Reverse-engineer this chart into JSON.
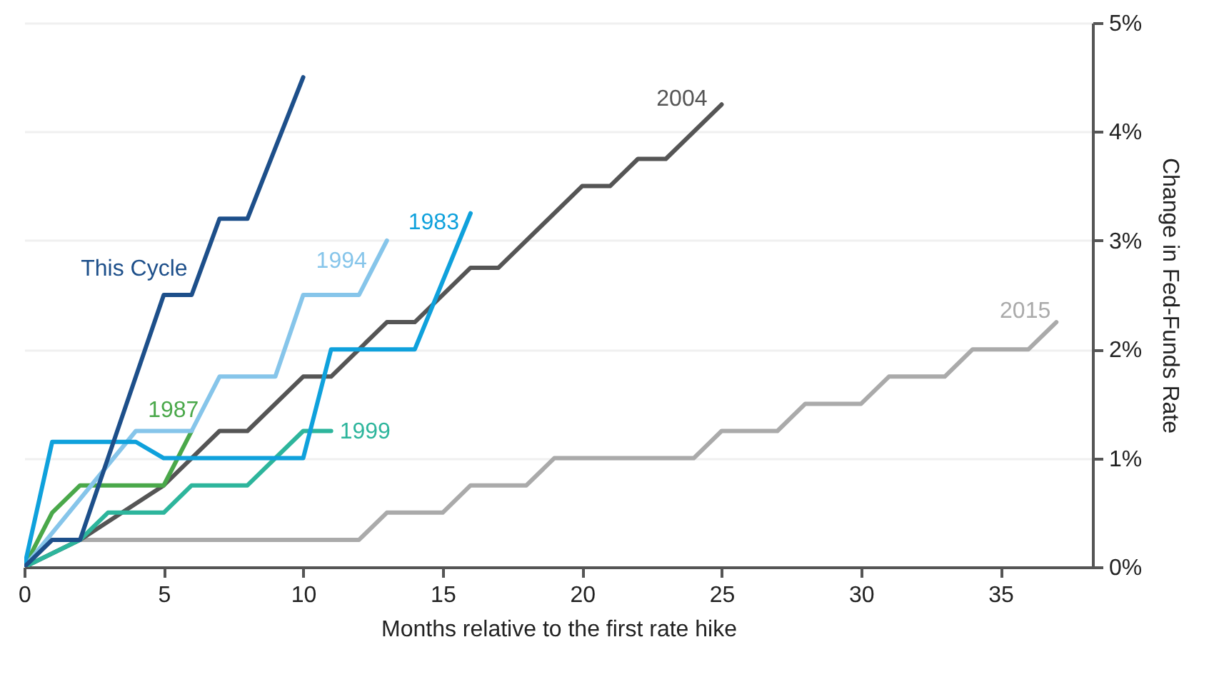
{
  "chart_data": {
    "type": "line",
    "xlabel": "Months relative to the first rate hike",
    "ylabel": "Change in Fed-Funds Rate",
    "xlim": [
      0,
      38.3
    ],
    "xticks": [
      0,
      5,
      10,
      15,
      20,
      25,
      30,
      35
    ],
    "ylim": [
      0,
      5
    ],
    "yticks": [
      {
        "value": 0,
        "label": "0%"
      },
      {
        "value": 1,
        "label": "1%"
      },
      {
        "value": 2,
        "label": "2%"
      },
      {
        "value": 3,
        "label": "3%"
      },
      {
        "value": 4,
        "label": "4%"
      },
      {
        "value": 5,
        "label": "5%"
      }
    ],
    "grid": "y",
    "line_style": "solid",
    "series": [
      {
        "name": "2015",
        "color": "#aaaaaa",
        "x": [
          0,
          1,
          12,
          13,
          15,
          16,
          18,
          19,
          24,
          25,
          27,
          28,
          30,
          31,
          33,
          34,
          36,
          37
        ],
        "values": [
          0,
          0.25,
          0.25,
          0.5,
          0.5,
          0.75,
          0.75,
          1,
          1,
          1.25,
          1.25,
          1.5,
          1.5,
          1.75,
          1.75,
          2,
          2,
          2.25
        ]
      },
      {
        "name": "2004",
        "color": "#555555",
        "x": [
          0,
          2,
          5,
          7,
          8,
          10,
          11,
          13,
          14,
          16,
          17,
          20,
          21,
          22,
          23,
          25
        ],
        "values": [
          0,
          0.25,
          0.75,
          1.25,
          1.25,
          1.75,
          1.75,
          2.25,
          2.25,
          2.75,
          2.75,
          3.5,
          3.5,
          3.75,
          3.75,
          4.25
        ]
      },
      {
        "name": "1999",
        "color": "#2db59c",
        "x": [
          0,
          2,
          3,
          5,
          6,
          8,
          10,
          11
        ],
        "values": [
          0,
          0.25,
          0.5,
          0.5,
          0.75,
          0.75,
          1.25,
          1.25
        ]
      },
      {
        "name": "1987",
        "color": "#4aa84a",
        "x": [
          0,
          1,
          2,
          5,
          6
        ],
        "values": [
          0,
          0.5,
          0.75,
          0.75,
          1.25
        ]
      },
      {
        "name": "1994",
        "color": "#86c5ea",
        "x": [
          0,
          4,
          6,
          7,
          9,
          10,
          12,
          13
        ],
        "values": [
          0,
          1.25,
          1.25,
          1.75,
          1.75,
          2.5,
          2.5,
          3
        ]
      },
      {
        "name": "1983",
        "color": "#0fa1dc",
        "x": [
          0,
          1,
          4,
          5,
          10,
          11,
          14,
          16
        ],
        "values": [
          0,
          1.15,
          1.15,
          1,
          1,
          2,
          2,
          3.25
        ]
      },
      {
        "name": "This Cycle",
        "color": "#1d4f8a",
        "x": [
          0,
          1,
          2,
          5,
          6,
          7,
          8,
          10
        ],
        "values": [
          0,
          0.25,
          0.25,
          2.5,
          2.5,
          3.2,
          3.2,
          4.5
        ]
      }
    ]
  }
}
